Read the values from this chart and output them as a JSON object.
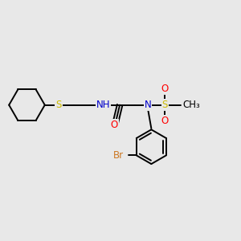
{
  "bg_color": "#e8e8e8",
  "C_color": "#000000",
  "N_color": "#0000cc",
  "O_color": "#ff0000",
  "S_thio_color": "#ccbb00",
  "S_sulfonyl_color": "#ccbb00",
  "Br_color": "#cc7722",
  "bond_color": "#000000",
  "bond_lw": 1.4,
  "font_size": 8.5,
  "fig_w": 3.0,
  "fig_h": 3.0,
  "dpi": 100,
  "xlim": [
    0.0,
    1.0
  ],
  "ylim": [
    0.15,
    0.85
  ]
}
